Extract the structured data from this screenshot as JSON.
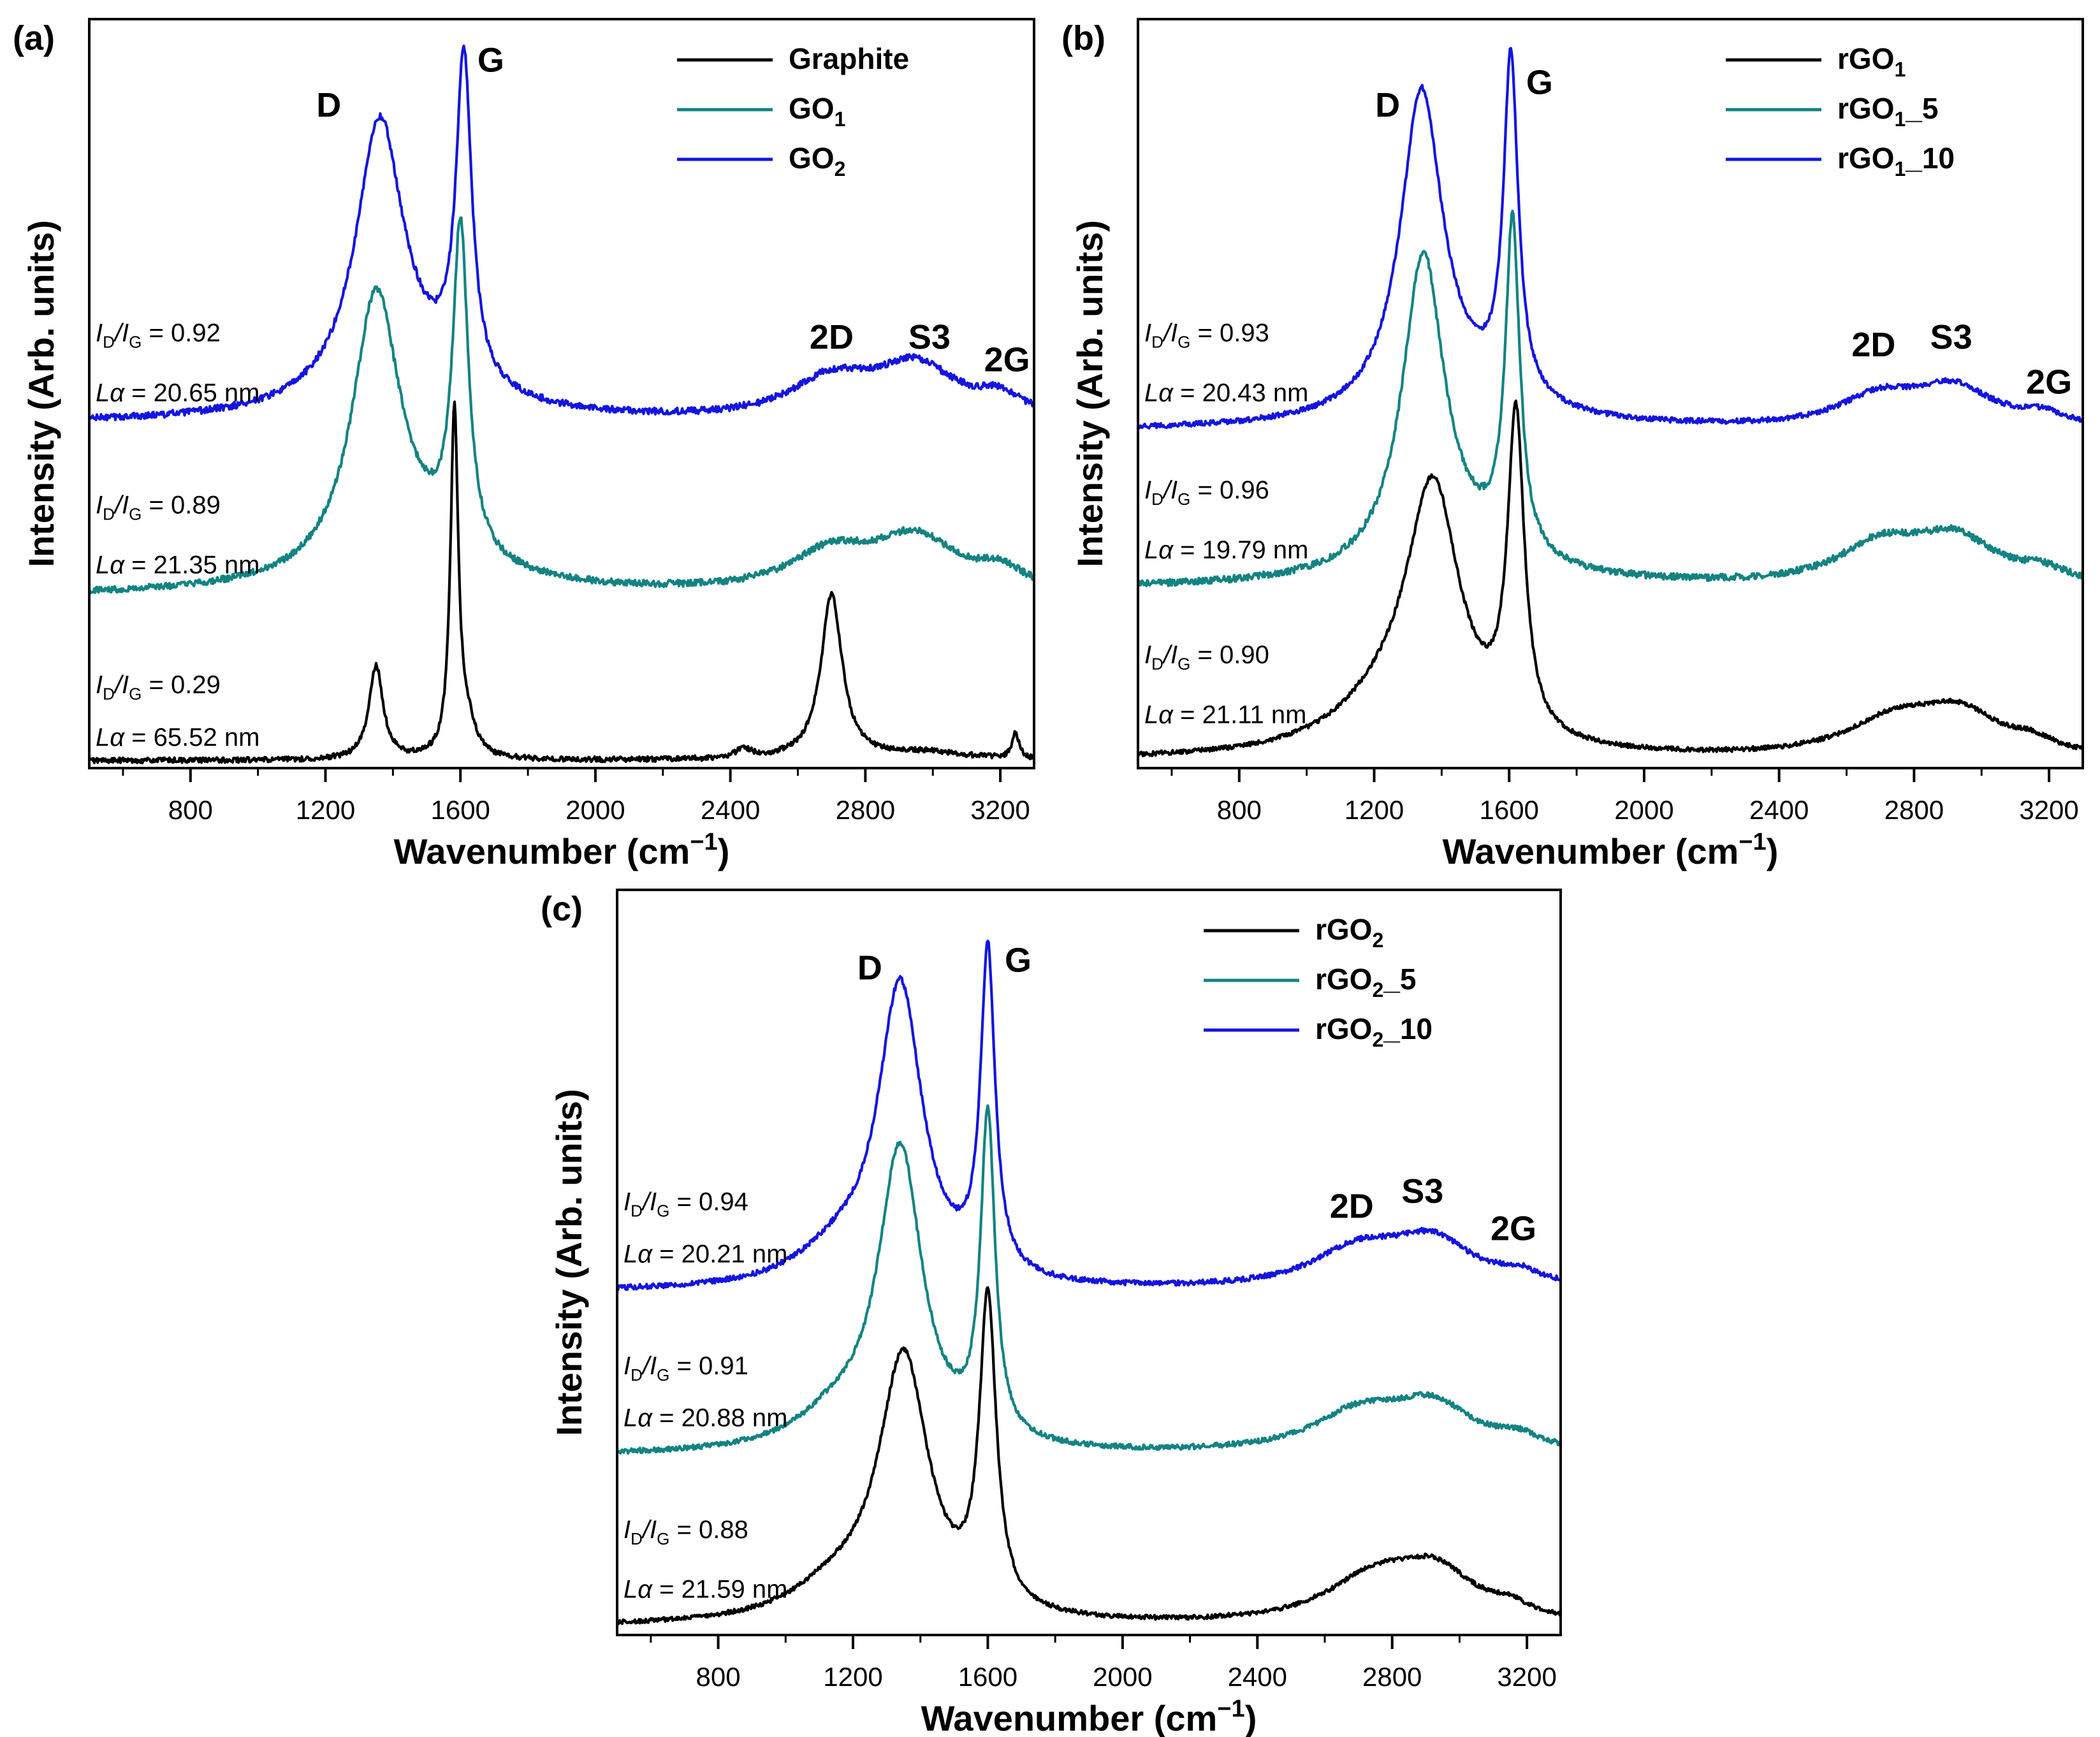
{
  "figure": {
    "type": "raman-spectra-multi-panel"
  },
  "chart_data": [
    {
      "type": "line",
      "panel_label": "(a)",
      "xlabel": "Wavenumber (cm",
      "xlabel_sup": "−1",
      "xlabel_close": ")",
      "ylabel": "Intensity (Arb. units)",
      "xlim": [
        500,
        3300
      ],
      "ylim": [
        0,
        100
      ],
      "x_ticks": [
        800,
        1200,
        1600,
        2000,
        2400,
        2800,
        3200
      ],
      "x_tick_labels": [
        "800",
        "1200",
        "1600",
        "2000",
        "2400",
        "2800",
        "3200"
      ],
      "peak_labels": [
        {
          "text": "D",
          "x": 1210,
          "y": 87
        },
        {
          "text": "G",
          "x": 1690,
          "y": 93
        },
        {
          "text": "2D",
          "x": 2700,
          "y": 56
        },
        {
          "text": "S3",
          "x": 2990,
          "y": 56
        },
        {
          "text": "2G",
          "x": 3220,
          "y": 53
        }
      ],
      "legend": {
        "position": "top-right",
        "entries": [
          {
            "label": "Graphite",
            "sub": "",
            "suffix": "",
            "color": "#000000"
          },
          {
            "label": "GO",
            "sub": "1",
            "suffix": "",
            "color": "#138382"
          },
          {
            "label": "GO",
            "sub": "2",
            "suffix": "",
            "color": "#1414e0"
          }
        ]
      },
      "annotations": [
        {
          "ratio": "0.92",
          "la": "20.65 nm",
          "y_ratio": 57,
          "y_la": 49
        },
        {
          "ratio": "0.89",
          "la": "21.35 nm",
          "y_ratio": 34,
          "y_la": 26
        },
        {
          "ratio": "0.29",
          "la": "65.52 nm",
          "y_ratio": 10,
          "y_la": 3
        }
      ],
      "series": [
        {
          "name": "GO2",
          "color": "#1414e0",
          "baseline": 46,
          "noise": 0.45,
          "peaks": [
            [
              1360,
              36,
              85
            ],
            [
              1610,
              43,
              28
            ],
            [
              1450,
              5,
              250
            ],
            [
              2700,
              5,
              150
            ],
            [
              2950,
              7,
              150
            ],
            [
              3200,
              2.5,
              80
            ]
          ]
        },
        {
          "name": "GO1",
          "color": "#138382",
          "baseline": 23,
          "noise": 0.45,
          "peaks": [
            [
              1350,
              36,
              85
            ],
            [
              1600,
              43,
              28
            ],
            [
              1450,
              5,
              250
            ],
            [
              2700,
              5,
              150
            ],
            [
              2950,
              7,
              150
            ],
            [
              3200,
              2.5,
              80
            ]
          ]
        },
        {
          "name": "Graphite",
          "color": "#000000",
          "baseline": 1,
          "noise": 0.35,
          "peaks": [
            [
              1350,
              12.5,
              25
            ],
            [
              1582,
              46,
              14
            ],
            [
              1620,
              4,
              30
            ],
            [
              2440,
              1.2,
              30
            ],
            [
              2700,
              22,
              38
            ],
            [
              2980,
              1,
              150
            ],
            [
              3245,
              3.5,
              12
            ]
          ]
        }
      ]
    },
    {
      "type": "line",
      "panel_label": "(b)",
      "xlabel": "Wavenumber (cm",
      "xlabel_sup": "−1",
      "xlabel_close": ")",
      "ylabel": "Intensity (Arb. units)",
      "xlim": [
        500,
        3300
      ],
      "ylim": [
        0,
        100
      ],
      "x_ticks": [
        800,
        1200,
        1600,
        2000,
        2400,
        2800,
        3200
      ],
      "x_tick_labels": [
        "800",
        "1200",
        "1600",
        "2000",
        "2400",
        "2800",
        "3200"
      ],
      "peak_labels": [
        {
          "text": "D",
          "x": 1240,
          "y": 87
        },
        {
          "text": "G",
          "x": 1690,
          "y": 90
        },
        {
          "text": "2D",
          "x": 2680,
          "y": 55
        },
        {
          "text": "S3",
          "x": 2910,
          "y": 56
        },
        {
          "text": "2G",
          "x": 3200,
          "y": 50
        }
      ],
      "legend": {
        "position": "top-right",
        "entries": [
          {
            "label": "rGO",
            "sub": "1",
            "suffix": "",
            "color": "#000000"
          },
          {
            "label": "rGO",
            "sub": "1",
            "suffix": "_5",
            "color": "#138382"
          },
          {
            "label": "rGO",
            "sub": "1",
            "suffix": "_10",
            "color": "#1414e0"
          }
        ]
      },
      "annotations": [
        {
          "ratio": "0.93",
          "la": "20.43 nm",
          "y_ratio": 57,
          "y_la": 49
        },
        {
          "ratio": "0.96",
          "la": "19.79 nm",
          "y_ratio": 36,
          "y_la": 28
        },
        {
          "ratio": "0.90",
          "la": "21.11 nm",
          "y_ratio": 14,
          "y_la": 6
        }
      ],
      "series": [
        {
          "name": "rGO1_10",
          "color": "#1414e0",
          "baseline": 45,
          "noise": 0.35,
          "peaks": [
            [
              1340,
              42,
              75
            ],
            [
              1605,
              45,
              26
            ],
            [
              1450,
              4,
              250
            ],
            [
              2700,
              4,
              150
            ],
            [
              2920,
              5,
              140
            ],
            [
              3180,
              1.5,
              90
            ]
          ]
        },
        {
          "name": "rGO1_5",
          "color": "#138382",
          "baseline": 24,
          "noise": 0.45,
          "peaks": [
            [
              1345,
              41,
              75
            ],
            [
              1610,
              44,
              26
            ],
            [
              1450,
              4,
              250
            ],
            [
              2700,
              5,
              150
            ],
            [
              2920,
              6,
              150
            ],
            [
              3180,
              1.5,
              80
            ]
          ]
        },
        {
          "name": "rGO1",
          "color": "#000000",
          "baseline": 1,
          "noise": 0.3,
          "peaks": [
            [
              1375,
              33,
              95
            ],
            [
              1620,
              42,
              30
            ],
            [
              1250,
              6,
              200
            ],
            [
              2750,
              5,
              180
            ],
            [
              2940,
              5,
              140
            ],
            [
              3150,
              1.5,
              80
            ]
          ]
        }
      ]
    },
    {
      "type": "line",
      "panel_label": "(c)",
      "xlabel": "Wavenumber (cm",
      "xlabel_sup": "−1",
      "xlabel_close": ")",
      "ylabel": "Intensity (Arb. units)",
      "xlim": [
        500,
        3300
      ],
      "ylim": [
        0,
        100
      ],
      "x_ticks": [
        800,
        1200,
        1600,
        2000,
        2400,
        2800,
        3200
      ],
      "x_tick_labels": [
        "800",
        "1200",
        "1600",
        "2000",
        "2400",
        "2800",
        "3200"
      ],
      "peak_labels": [
        {
          "text": "D",
          "x": 1250,
          "y": 88
        },
        {
          "text": "G",
          "x": 1690,
          "y": 89
        },
        {
          "text": "2D",
          "x": 2680,
          "y": 56
        },
        {
          "text": "S3",
          "x": 2890,
          "y": 58
        },
        {
          "text": "2G",
          "x": 3160,
          "y": 53
        }
      ],
      "legend": {
        "position": "top-right",
        "entries": [
          {
            "label": "rGO",
            "sub": "2",
            "suffix": "",
            "color": "#000000"
          },
          {
            "label": "rGO",
            "sub": "2",
            "suffix": "_5",
            "color": "#138382"
          },
          {
            "label": "rGO",
            "sub": "2",
            "suffix": "_10",
            "color": "#1414e0"
          }
        ]
      },
      "annotations": [
        {
          "ratio": "0.94",
          "la": "20.21 nm",
          "y_ratio": 57,
          "y_la": 50
        },
        {
          "ratio": "0.91",
          "la": "20.88 nm",
          "y_ratio": 35,
          "y_la": 28
        },
        {
          "ratio": "0.88",
          "la": "21.59 nm",
          "y_ratio": 13,
          "y_la": 5
        }
      ],
      "series": [
        {
          "name": "rGO2_10",
          "color": "#1414e0",
          "baseline": 46,
          "noise": 0.35,
          "peaks": [
            [
              1340,
              40,
              80
            ],
            [
              1600,
              43,
              26
            ],
            [
              1150,
              4,
              150
            ],
            [
              2700,
              5,
              170
            ],
            [
              2920,
              6,
              150
            ],
            [
              3180,
              1.5,
              80
            ]
          ]
        },
        {
          "name": "rGO2_5",
          "color": "#138382",
          "baseline": 24,
          "noise": 0.35,
          "peaks": [
            [
              1340,
              40,
              80
            ],
            [
              1600,
              43,
              26
            ],
            [
              1150,
              4,
              150
            ],
            [
              2700,
              5,
              170
            ],
            [
              2920,
              6,
              150
            ],
            [
              3180,
              1.5,
              80
            ]
          ]
        },
        {
          "name": "rGO2",
          "color": "#000000",
          "baseline": 1,
          "noise": 0.3,
          "peaks": [
            [
              1350,
              35,
              90
            ],
            [
              1600,
              41,
              30
            ],
            [
              1150,
              4,
              170
            ],
            [
              2750,
              6,
              180
            ],
            [
              2930,
              6,
              140
            ],
            [
              3150,
              1.5,
              80
            ]
          ]
        }
      ]
    }
  ]
}
